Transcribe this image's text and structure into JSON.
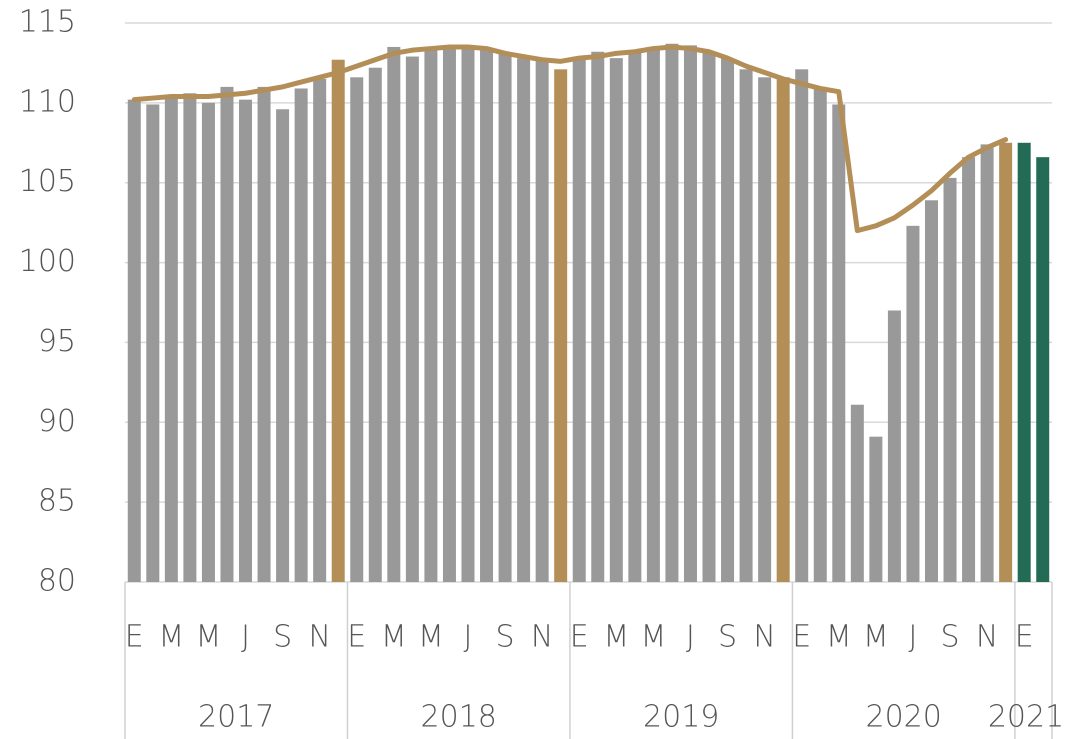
{
  "chart_data": {
    "type": "bar",
    "categories": [
      "E",
      null,
      "M",
      null,
      "M",
      null,
      "J",
      null,
      "S",
      null,
      "N",
      null,
      "E",
      null,
      "M",
      null,
      "M",
      null,
      "J",
      null,
      "S",
      null,
      "N",
      null,
      "E",
      null,
      "M",
      null,
      "M",
      null,
      "J",
      null,
      "S",
      null,
      "N",
      null,
      "E",
      null,
      "M",
      null,
      "M",
      null,
      "J",
      null,
      "S",
      null,
      "N",
      null,
      "E",
      null
    ],
    "years": [
      "2017",
      "2018",
      "2019",
      "2020",
      "2021"
    ],
    "values": [
      110.2,
      109.9,
      110.3,
      110.6,
      110.0,
      111.0,
      110.2,
      111.0,
      109.6,
      110.9,
      111.5,
      112.7,
      111.6,
      112.2,
      113.5,
      112.9,
      113.4,
      113.5,
      113.5,
      113.4,
      113.1,
      112.8,
      112.8,
      112.1,
      112.9,
      113.2,
      112.8,
      113.3,
      113.5,
      113.7,
      113.6,
      113.2,
      112.8,
      112.1,
      111.6,
      111.6,
      112.1,
      111.0,
      109.9,
      91.1,
      89.1,
      97.0,
      102.3,
      103.9,
      105.3,
      106.6,
      107.4,
      107.5,
      107.5,
      106.6
    ],
    "colors": [
      "#999999",
      "#999999",
      "#999999",
      "#999999",
      "#999999",
      "#999999",
      "#999999",
      "#999999",
      "#999999",
      "#999999",
      "#999999",
      "#b38e57",
      "#999999",
      "#999999",
      "#999999",
      "#999999",
      "#999999",
      "#999999",
      "#999999",
      "#999999",
      "#999999",
      "#999999",
      "#999999",
      "#b38e57",
      "#999999",
      "#999999",
      "#999999",
      "#999999",
      "#999999",
      "#999999",
      "#999999",
      "#999999",
      "#999999",
      "#999999",
      "#999999",
      "#b38e57",
      "#999999",
      "#999999",
      "#999999",
      "#999999",
      "#999999",
      "#999999",
      "#999999",
      "#999999",
      "#999999",
      "#999999",
      "#999999",
      "#b38e57",
      "#236b55",
      "#236b55"
    ],
    "line": {
      "color": "#b38e57",
      "values": [
        110.2,
        110.3,
        110.4,
        110.4,
        110.4,
        110.5,
        110.6,
        110.8,
        111.0,
        111.3,
        111.6,
        111.9,
        112.3,
        112.7,
        113.1,
        113.3,
        113.4,
        113.5,
        113.5,
        113.4,
        113.1,
        112.9,
        112.7,
        112.6,
        112.8,
        112.9,
        113.1,
        113.2,
        113.4,
        113.5,
        113.4,
        113.2,
        112.8,
        112.3,
        111.9,
        111.5,
        111.2,
        110.9,
        110.7,
        102.0,
        102.3,
        102.8,
        103.6,
        104.5,
        105.6,
        106.6,
        107.2,
        107.7,
        null,
        null
      ]
    },
    "ylim": [
      80,
      115
    ],
    "yticks": [
      80,
      85,
      90,
      95,
      100,
      105,
      110,
      115
    ],
    "grid": true
  }
}
